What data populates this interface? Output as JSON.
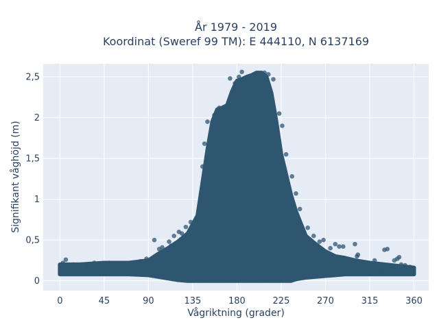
{
  "chart_data": {
    "type": "scatter",
    "title": [
      "År 1979 - 2019",
      "Koordinat (Sweref 99 TM): E 444110, N 6137169"
    ],
    "xlabel": "Vågriktning (grader)",
    "ylabel": "Signifikant våghöjd (m)",
    "xlim": [
      -17,
      375
    ],
    "ylim": [
      -0.12,
      2.66
    ],
    "xticks": [
      0,
      45,
      90,
      135,
      180,
      225,
      270,
      315,
      360
    ],
    "xtick_labels": [
      "0",
      "45",
      "90",
      "135",
      "180",
      "225",
      "270",
      "315",
      "360"
    ],
    "yticks": [
      0,
      0.5,
      1,
      1.5,
      2,
      2.5
    ],
    "ytick_labels": [
      "0",
      "0,5",
      "1",
      "1,5",
      "2",
      "2,5"
    ],
    "grid": true,
    "legend": "none",
    "colors": {
      "marker": "#2f5670",
      "plot_bg": "#e5ecf6",
      "grid": "#ffffff",
      "text": "#2a3f5f"
    },
    "envelope": {
      "direction_deg": [
        0,
        20,
        45,
        70,
        90,
        100,
        110,
        120,
        130,
        140,
        145,
        150,
        155,
        160,
        165,
        170,
        175,
        180,
        185,
        190,
        195,
        200,
        205,
        210,
        215,
        220,
        225,
        230,
        235,
        240,
        250,
        260,
        270,
        280,
        290,
        300,
        315,
        330,
        345,
        360
      ],
      "max_height_m": [
        0.2,
        0.2,
        0.22,
        0.22,
        0.25,
        0.33,
        0.4,
        0.48,
        0.58,
        0.8,
        1.2,
        1.6,
        1.95,
        2.1,
        2.12,
        2.15,
        2.32,
        2.45,
        2.47,
        2.5,
        2.52,
        2.55,
        2.55,
        2.5,
        2.3,
        1.95,
        1.55,
        1.3,
        1.05,
        0.85,
        0.55,
        0.45,
        0.36,
        0.3,
        0.28,
        0.25,
        0.22,
        0.2,
        0.18,
        0.16
      ],
      "min_height_m": [
        0.08,
        0.08,
        0.08,
        0.08,
        0.07,
        0.05,
        0.03,
        0.01,
        0,
        0,
        0,
        0,
        0,
        0,
        0,
        0,
        0,
        0,
        0,
        0,
        0,
        0,
        0,
        0,
        0,
        0,
        0,
        0,
        0,
        0.02,
        0.04,
        0.05,
        0.06,
        0.07,
        0.08,
        0.08,
        0.08,
        0.08,
        0.08,
        0.08
      ]
    },
    "points": [
      [
        6,
        0.26
      ],
      [
        3,
        0.22
      ],
      [
        14,
        0.2
      ],
      [
        28,
        0.19
      ],
      [
        35,
        0.22
      ],
      [
        50,
        0.22
      ],
      [
        58,
        0.21
      ],
      [
        75,
        0.2
      ],
      [
        82,
        0.24
      ],
      [
        88,
        0.27
      ],
      [
        96,
        0.5
      ],
      [
        101,
        0.39
      ],
      [
        104,
        0.41
      ],
      [
        111,
        0.48
      ],
      [
        113,
        0.43
      ],
      [
        116,
        0.55
      ],
      [
        121,
        0.6
      ],
      [
        124,
        0.58
      ],
      [
        128,
        0.66
      ],
      [
        133,
        0.72
      ],
      [
        275,
        0.4
      ],
      [
        280,
        0.45
      ],
      [
        284,
        0.42
      ],
      [
        288,
        0.42
      ],
      [
        300,
        0.45
      ],
      [
        302,
        0.3
      ],
      [
        303,
        0.32
      ],
      [
        320,
        0.25
      ],
      [
        330,
        0.38
      ],
      [
        333,
        0.39
      ],
      [
        327,
        0.13
      ],
      [
        340,
        0.25
      ],
      [
        343,
        0.27
      ],
      [
        345,
        0.29
      ],
      [
        347,
        0.2
      ],
      [
        351,
        0.19
      ],
      [
        356,
        0.17
      ],
      [
        358,
        0.15
      ],
      [
        138,
        0.02
      ],
      [
        150,
        0.01
      ],
      [
        160,
        0.02
      ],
      [
        172,
        0.01
      ],
      [
        185,
        0.02
      ],
      [
        196,
        0.01
      ],
      [
        210,
        0.01
      ],
      [
        225,
        0.02
      ],
      [
        239,
        0.02
      ],
      [
        173,
        2.48
      ],
      [
        182,
        2.5
      ],
      [
        185,
        2.56
      ],
      [
        198,
        2.53
      ],
      [
        208,
        2.55
      ],
      [
        212,
        2.53
      ],
      [
        217,
        2.47
      ],
      [
        157,
        2.03
      ],
      [
        162,
        2.12
      ],
      [
        170,
        2.15
      ],
      [
        166,
        2.1
      ],
      [
        178,
        2.35
      ],
      [
        178,
        2.42
      ],
      [
        150,
        1.95
      ],
      [
        147,
        1.68
      ],
      [
        145,
        1.4
      ],
      [
        223,
        2.05
      ],
      [
        226,
        1.9
      ],
      [
        230,
        1.55
      ],
      [
        236,
        1.28
      ],
      [
        240,
        1.07
      ],
      [
        244,
        0.88
      ],
      [
        252,
        0.65
      ],
      [
        258,
        0.55
      ],
      [
        264,
        0.48
      ],
      [
        268,
        0.5
      ]
    ]
  }
}
